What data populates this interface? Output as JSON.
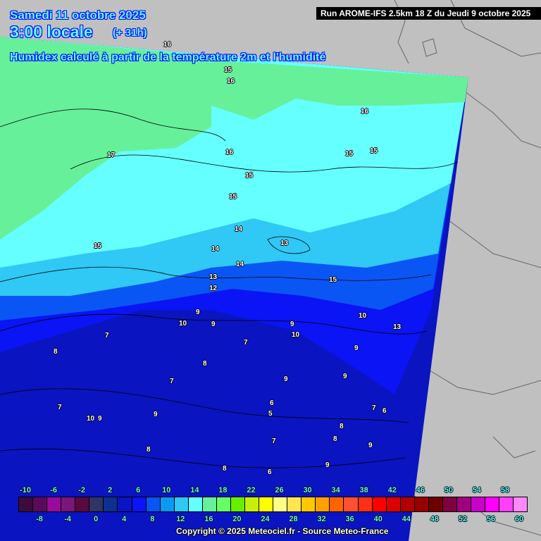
{
  "header": {
    "date": "Samedi 11 octobre 2025",
    "time": "3:00 locale",
    "lead_time": "(+ 31h)",
    "subtitle": "Humidex calculé à partir de la température 2m et l'humidité",
    "run_info": "Run AROME-IFS 2.5km 18 Z du Jeudi 9 octobre 2025"
  },
  "map": {
    "background_color": "#c0c0c0",
    "contour_labels": [
      "16",
      "15",
      "16",
      "16",
      "17",
      "16",
      "15",
      "15",
      "15",
      "15",
      "15",
      "14",
      "14",
      "13",
      "14",
      "13",
      "12",
      "15",
      "10",
      "13",
      "9",
      "10",
      "9",
      "10",
      "9",
      "9",
      "7",
      "8",
      "7",
      "8",
      "7",
      "9",
      "9",
      "10",
      "9",
      "7",
      "7",
      "8",
      "9",
      "6",
      "5",
      "7",
      "6",
      "8",
      "8",
      "9",
      "8",
      "6",
      "9"
    ]
  },
  "legend": {
    "ticks": [
      -10,
      -8,
      -6,
      -4,
      -2,
      0,
      2,
      4,
      6,
      8,
      10,
      12,
      14,
      16,
      18,
      20,
      22,
      24,
      26,
      28,
      30,
      32,
      34,
      36,
      38,
      40,
      42,
      44,
      46,
      48,
      50,
      52,
      54,
      56,
      58,
      60
    ],
    "colors": [
      "#3c0a3c",
      "#5a0a5a",
      "#9a0a9a",
      "#7a167a",
      "#5a0840",
      "#303462",
      "#0a3090",
      "#0a14c0",
      "#0a14f4",
      "#0a56f4",
      "#0a9af4",
      "#30c8f4",
      "#66ffff",
      "#66f09a",
      "#66ff66",
      "#66f000",
      "#c4f00a",
      "#ffff00",
      "#ffff88",
      "#ffe650",
      "#ffc800",
      "#ffa000",
      "#ff6400",
      "#ff5030",
      "#ff3014",
      "#ff0000",
      "#dc0000",
      "#b00000",
      "#960000",
      "#6e0000",
      "#800040",
      "#a00080",
      "#c800c8",
      "#ff00ff",
      "#ff40ff",
      "#ff88ff"
    ]
  },
  "copyright": "Copyright © 2025 Meteociel.fr - Source Meteo-France"
}
